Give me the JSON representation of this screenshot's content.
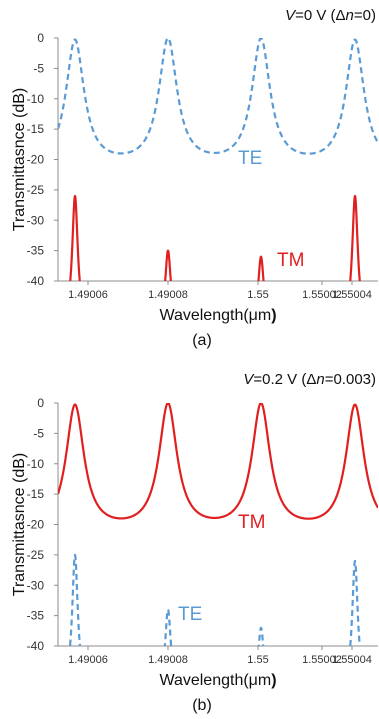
{
  "chart_data": [
    {
      "panel_label": "(a)",
      "type": "line",
      "condition": {
        "prefix_var": "V",
        "prefix_rest": "=0 V (",
        "delta": "Δ",
        "n": "n",
        "suffix": "=0)"
      },
      "ylabel": "Transmittasnce (dB)",
      "xlabel": {
        "main": "Wavelength(",
        "mu": "μ",
        "unit": "m",
        "close": ")"
      },
      "ylim": [
        -40,
        0
      ],
      "yticks": [
        0,
        -5,
        -10,
        -15,
        -20,
        -25,
        -30,
        -35,
        -40
      ],
      "xticks": [
        "1.49006",
        "1.49008",
        "1.55",
        "1.55002",
        "1.55004"
      ],
      "grid": false,
      "series": [
        {
          "name": "TE",
          "style": "dashed",
          "color": "#5b9bd5",
          "peaks": [
            1,
            2,
            3,
            4
          ],
          "peak_db": 0,
          "valley_db": -19
        },
        {
          "name": "TM",
          "style": "solid",
          "color": "#e02020",
          "peaks": [
            1,
            2,
            3,
            4
          ],
          "peak_db": [
            -26,
            -35,
            -36,
            -26
          ]
        }
      ]
    },
    {
      "panel_label": "(b)",
      "type": "line",
      "condition": {
        "prefix_var": "V",
        "prefix_rest": "=0.2 V (",
        "delta": "Δ",
        "n": "n",
        "suffix": "=0.003)"
      },
      "ylabel": "Transmittasnce (dB)",
      "xlabel": {
        "main": "Wavelength(",
        "mu": "μ",
        "unit": "m",
        "close": ")"
      },
      "ylim": [
        -40,
        0
      ],
      "yticks": [
        0,
        -5,
        -10,
        -15,
        -20,
        -25,
        -30,
        -35,
        -40
      ],
      "xticks": [
        "1.49006",
        "1.49008",
        "1.55",
        "1.55002",
        "1.55004"
      ],
      "grid": false,
      "series": [
        {
          "name": "TM",
          "style": "solid",
          "color": "#e02020",
          "peaks": [
            1,
            2,
            3,
            4
          ],
          "peak_db": 0,
          "valley_db": -19
        },
        {
          "name": "TE",
          "style": "dashed",
          "color": "#5b9bd5",
          "peaks": [
            1,
            2,
            3,
            4
          ],
          "peak_db": [
            -25,
            -34,
            -37,
            -26
          ]
        }
      ]
    }
  ]
}
